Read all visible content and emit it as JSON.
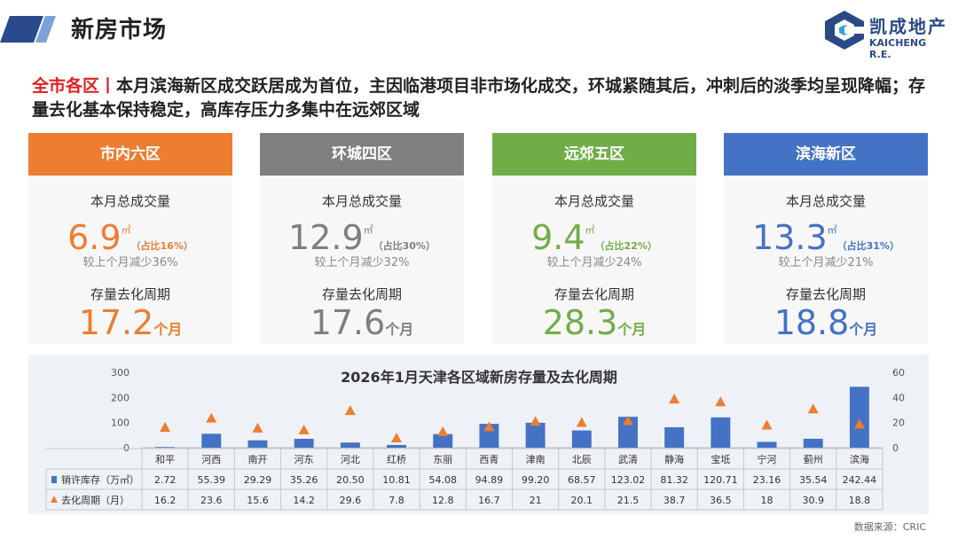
{
  "header": {
    "title": "新房市场"
  },
  "logo": {
    "cn": "凯成地产",
    "en": "KAICHENG R.E."
  },
  "summary": {
    "keyword": "全市各区",
    "separator": "丨",
    "text": "本月滨海新区成交跃居成为首位，主因临港项目非市场化成交，环城紧随其后，冲刺后的淡季均呈现降幅；存量去化基本保持稳定，高库存压力多集中在远郊区域"
  },
  "cards": [
    {
      "title": "市内六区",
      "color": "#ed7d31",
      "deal_label": "本月总成交量",
      "deal_value": "6.9",
      "deal_unit": "㎡",
      "share": "（占比16%）",
      "change": "较上个月减少36%",
      "cycle_label": "存量去化周期",
      "cycle_value": "17.2",
      "cycle_unit": "个月"
    },
    {
      "title": "环城四区",
      "color": "#7f7f7f",
      "deal_label": "本月总成交量",
      "deal_value": "12.9",
      "deal_unit": "㎡",
      "share": "（占比30%）",
      "change": "较上个月减少32%",
      "cycle_label": "存量去化周期",
      "cycle_value": "17.6",
      "cycle_unit": "个月"
    },
    {
      "title": "远郊五区",
      "color": "#70ad47",
      "deal_label": "本月总成交量",
      "deal_value": "9.4",
      "deal_unit": "㎡",
      "share": "（占比22%）",
      "change": "较上个月减少24%",
      "cycle_label": "存量去化周期",
      "cycle_value": "28.3",
      "cycle_unit": "个月"
    },
    {
      "title": "滨海新区",
      "color": "#4472c4",
      "deal_label": "本月总成交量",
      "deal_value": "13.3",
      "deal_unit": "㎡",
      "share": "（占比31%）",
      "change": "较上个月减少21%",
      "cycle_label": "存量去化周期",
      "cycle_value": "18.8",
      "cycle_unit": "个月"
    }
  ],
  "chart_data": {
    "type": "bar",
    "title": "2026年1月天津各区域新房存量及去化周期",
    "categories": [
      "和平",
      "河西",
      "南开",
      "河东",
      "河北",
      "红桥",
      "东丽",
      "西青",
      "津南",
      "北辰",
      "武清",
      "静海",
      "宝坻",
      "宁河",
      "蓟州",
      "滨海"
    ],
    "series": [
      {
        "name": "销许库存（万㎡）",
        "kind": "bar",
        "axis": "left",
        "color": "#4472c4",
        "values": [
          2.72,
          55.39,
          29.29,
          35.26,
          20.5,
          10.81,
          54.08,
          94.89,
          99.2,
          68.57,
          123.02,
          81.32,
          120.71,
          23.16,
          35.54,
          242.44
        ],
        "labels": [
          "2.72",
          "55.39",
          "29.29",
          "35.26",
          "20.50",
          "10.81",
          "54.08",
          "94.89",
          "99.20",
          "68.57",
          "123.02",
          "81.32",
          "120.71",
          "23.16",
          "35.54",
          "242.44"
        ]
      },
      {
        "name": "去化周期（月）",
        "kind": "marker",
        "axis": "right",
        "color": "#ed7d31",
        "values": [
          16.2,
          23.6,
          15.6,
          14.2,
          29.6,
          7.8,
          12.8,
          16.7,
          21,
          20.1,
          21.5,
          38.7,
          36.5,
          18,
          30.9,
          18.8
        ],
        "labels": [
          "16.2",
          "23.6",
          "15.6",
          "14.2",
          "29.6",
          "7.8",
          "12.8",
          "16.7",
          "21",
          "20.1",
          "21.5",
          "38.7",
          "36.5",
          "18",
          "30.9",
          "18.8"
        ]
      }
    ],
    "ylim_left": [
      0,
      300
    ],
    "ylim_right": [
      0,
      60
    ],
    "yticks_left": [
      "0",
      "100",
      "200",
      "300"
    ],
    "yticks_right": [
      "0",
      "20",
      "40",
      "60"
    ],
    "legend": "data-table"
  },
  "source": "数据来源：CRIC"
}
